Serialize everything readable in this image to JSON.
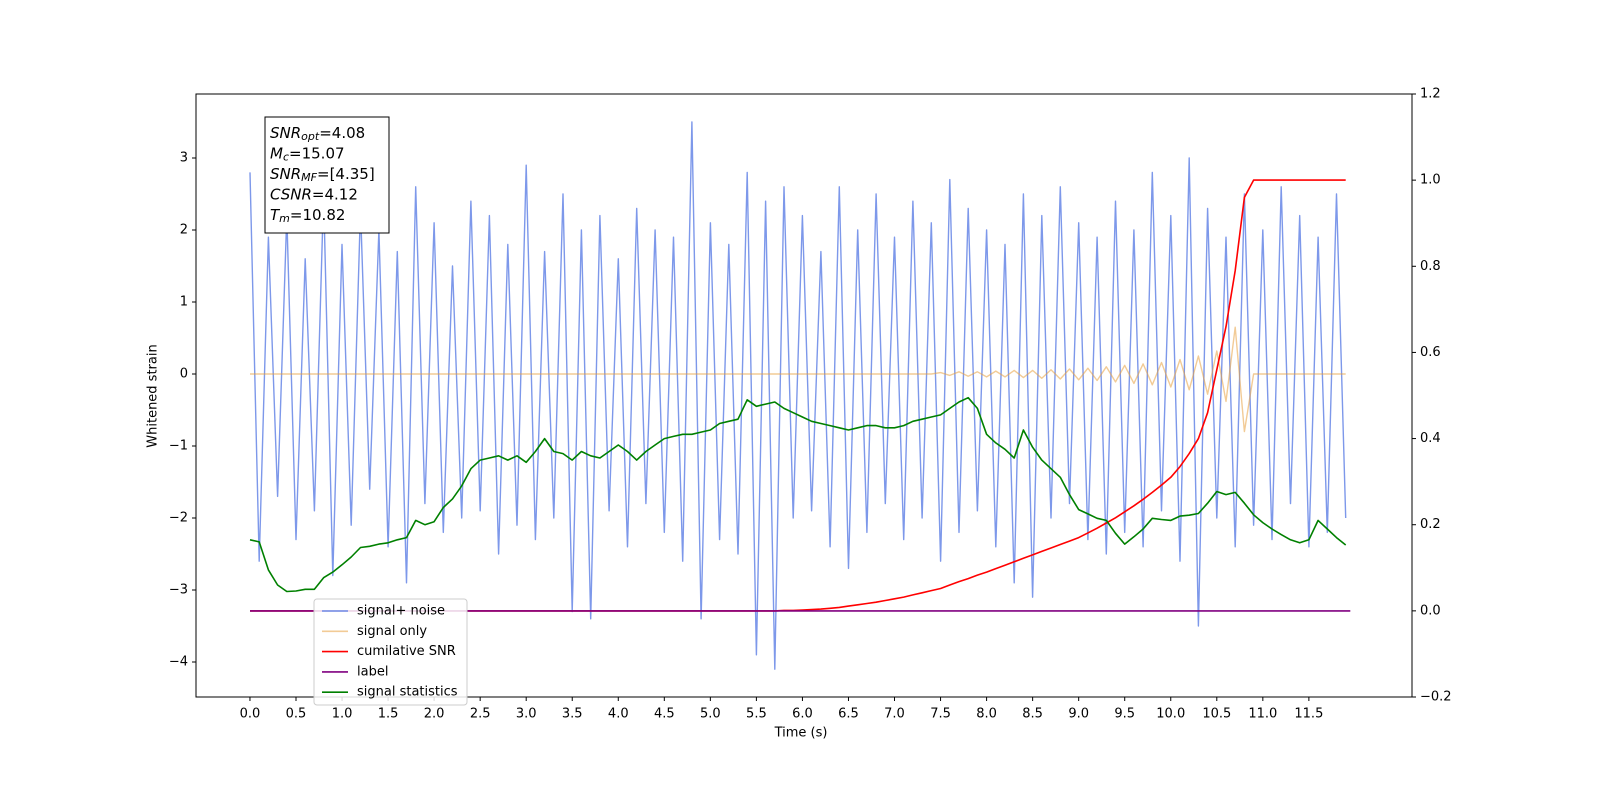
{
  "chart_data": {
    "type": "line",
    "xlabel": "Time (s)",
    "ylabel": "Whitened strain",
    "xlim": [
      -0.586,
      12.62
    ],
    "ylim": [
      -4.486,
      3.889
    ],
    "y2lim": [
      -0.2,
      1.2
    ],
    "xticks": [
      {
        "value": 0,
        "label": "0.0"
      },
      0.5,
      {
        "value": 1,
        "label": "1.0"
      },
      1.5,
      {
        "value": 2,
        "label": "2.0"
      },
      2.5,
      {
        "value": 3,
        "label": "3.0"
      },
      3.5,
      {
        "value": 4,
        "label": "4.0"
      },
      4.5,
      {
        "value": 5,
        "label": "5.0"
      },
      5.5,
      {
        "value": 6,
        "label": "6.0"
      },
      6.5,
      {
        "value": 7,
        "label": "7.0"
      },
      7.5,
      {
        "value": 8,
        "label": "8.0"
      },
      8.5,
      {
        "value": 9,
        "label": "9.0"
      },
      9.5,
      {
        "value": 10,
        "label": "10.0"
      },
      10.5,
      {
        "value": 11,
        "label": "11.0"
      },
      11.5
    ],
    "yticks": [
      {
        "value": -4,
        "label": "−4"
      },
      {
        "value": -3,
        "label": "−3"
      },
      {
        "value": -2,
        "label": "−2"
      },
      {
        "value": -1,
        "label": "−1"
      },
      0,
      1,
      2,
      3
    ],
    "y2ticks": [
      {
        "value": -0.2,
        "label": "−0.2"
      },
      {
        "value": 0,
        "label": "0.0"
      },
      0.2,
      0.4,
      0.6,
      0.8,
      {
        "value": 1,
        "label": "1.0"
      },
      1.2
    ],
    "grid": false,
    "legend": "lower left",
    "annotation": [
      {
        "base": "SNR",
        "sub": "opt",
        "text": "=4.08"
      },
      {
        "base": "M",
        "sub": "c",
        "text": "=15.07"
      },
      {
        "base": "SNR",
        "sub": "MF",
        "text": "=[4.35]"
      },
      {
        "base": "CSNR",
        "sub": "",
        "text": "=4.12"
      },
      {
        "base": "T",
        "sub": "m",
        "text": "=10.82"
      }
    ],
    "x": [
      0,
      0.1,
      0.2,
      0.3,
      0.4,
      0.5,
      0.6,
      0.7,
      0.8,
      0.9,
      1,
      1.1,
      1.2,
      1.3,
      1.4,
      1.5,
      1.6,
      1.7,
      1.8,
      1.9,
      2,
      2.1,
      2.2,
      2.3,
      2.4,
      2.5,
      2.6,
      2.7,
      2.8,
      2.9,
      3,
      3.1,
      3.2,
      3.3,
      3.4,
      3.5,
      3.6,
      3.7,
      3.8,
      3.9,
      4,
      4.1,
      4.2,
      4.3,
      4.4,
      4.5,
      4.6,
      4.7,
      4.8,
      4.9,
      5,
      5.1,
      5.2,
      5.3,
      5.4,
      5.5,
      5.6,
      5.7,
      5.8,
      5.9,
      6,
      6.1,
      6.2,
      6.3,
      6.4,
      6.5,
      6.6,
      6.7,
      6.8,
      6.9,
      7,
      7.1,
      7.2,
      7.3,
      7.4,
      7.5,
      7.6,
      7.7,
      7.8,
      7.9,
      8,
      8.1,
      8.2,
      8.3,
      8.4,
      8.5,
      8.6,
      8.7,
      8.8,
      8.9,
      9,
      9.1,
      9.2,
      9.3,
      9.4,
      9.5,
      9.6,
      9.7,
      9.8,
      9.9,
      10,
      10.1,
      10.2,
      10.3,
      10.4,
      10.5,
      10.6,
      10.7,
      10.8,
      10.9,
      11,
      11.1,
      11.2,
      11.3,
      11.4,
      11.5,
      11.6,
      11.7,
      11.8,
      11.9
    ],
    "series": [
      {
        "name": "signal+ noise",
        "color": "#6f8de8",
        "axis": "y",
        "values": [
          2.8,
          -2.6,
          1.9,
          -1.7,
          2.2,
          -2.3,
          1.6,
          -1.9,
          2.5,
          -2.8,
          1.8,
          -2.1,
          2.3,
          -1.6,
          2.0,
          -2.4,
          1.7,
          -2.9,
          2.6,
          -1.8,
          2.1,
          -2.2,
          1.5,
          -2.0,
          2.4,
          -1.9,
          2.2,
          -2.5,
          1.8,
          -2.1,
          2.9,
          -2.3,
          1.7,
          -2.0,
          2.5,
          -3.3,
          2.0,
          -3.4,
          2.2,
          -1.9,
          1.6,
          -2.4,
          2.3,
          -1.8,
          2.0,
          -2.2,
          1.9,
          -2.6,
          3.5,
          -3.4,
          2.1,
          -2.3,
          1.8,
          -2.5,
          2.8,
          -3.9,
          2.4,
          -4.1,
          2.6,
          -2.0,
          2.2,
          -1.9,
          1.7,
          -2.4,
          2.6,
          -2.7,
          2.0,
          -2.2,
          2.5,
          -1.8,
          1.9,
          -2.3,
          2.4,
          -2.0,
          2.1,
          -2.6,
          2.7,
          -2.2,
          2.3,
          -1.9,
          2.0,
          -2.4,
          1.8,
          -2.9,
          2.5,
          -3.1,
          2.2,
          -2.0,
          2.6,
          -1.8,
          2.1,
          -2.3,
          1.9,
          -2.5,
          2.4,
          -2.2,
          2.0,
          -2.4,
          2.8,
          -1.9,
          2.2,
          -2.6,
          3.0,
          -3.5,
          2.3,
          -2.0,
          1.9,
          -2.4,
          2.5,
          -2.1,
          2.0,
          -2.3,
          2.6,
          -1.8,
          2.2,
          -2.4,
          1.9,
          -2.2,
          2.5,
          -2.0
        ]
      },
      {
        "name": "signal only",
        "color": "#e8a040",
        "axis": "y",
        "values": [
          0,
          0,
          0,
          0,
          0,
          0,
          0,
          0,
          0,
          0,
          0,
          0,
          0,
          0,
          0,
          0,
          0,
          0,
          0,
          0,
          0,
          0,
          0,
          0,
          0,
          0,
          0,
          0,
          0,
          0,
          0,
          0,
          0,
          0,
          0,
          0,
          0,
          0,
          0,
          0,
          0,
          0,
          0,
          0,
          0,
          0,
          0,
          0,
          0,
          0,
          0,
          0,
          0,
          0,
          0,
          0,
          0,
          0,
          0,
          0,
          0,
          0,
          0,
          0,
          0,
          0,
          0,
          0,
          0,
          0,
          0,
          0,
          0,
          0,
          0,
          0.02,
          -0.02,
          0.03,
          -0.03,
          0.03,
          -0.04,
          0.04,
          -0.04,
          0.05,
          -0.05,
          0.05,
          -0.06,
          0.06,
          -0.07,
          0.07,
          -0.08,
          0.08,
          -0.09,
          0.1,
          -0.11,
          0.12,
          -0.13,
          0.14,
          -0.15,
          0.16,
          -0.18,
          0.2,
          -0.22,
          0.25,
          -0.28,
          0.32,
          -0.38,
          0.65,
          -0.8,
          0,
          0,
          0,
          0,
          0,
          0,
          0,
          0,
          0,
          0,
          0
        ]
      },
      {
        "name": "cumilative SNR",
        "color": "#ff0000",
        "axis": "y2",
        "values": [
          0,
          0,
          0,
          0,
          0,
          0,
          0,
          0,
          0,
          0,
          0,
          0,
          0,
          0,
          0,
          0,
          0,
          0,
          0,
          0,
          0,
          0,
          0,
          0,
          0,
          0,
          0,
          0,
          0,
          0,
          0,
          0,
          0,
          0,
          0,
          0,
          0,
          0,
          0,
          0,
          0,
          0,
          0,
          0,
          0,
          0,
          0,
          0,
          0,
          0,
          0,
          0,
          0,
          0,
          0,
          0,
          0,
          0,
          0.001,
          0.001,
          0.002,
          0.003,
          0.004,
          0.006,
          0.008,
          0.011,
          0.014,
          0.017,
          0.02,
          0.024,
          0.028,
          0.032,
          0.037,
          0.042,
          0.047,
          0.052,
          0.06,
          0.068,
          0.075,
          0.083,
          0.09,
          0.098,
          0.106,
          0.114,
          0.122,
          0.13,
          0.138,
          0.146,
          0.154,
          0.162,
          0.17,
          0.181,
          0.192,
          0.204,
          0.216,
          0.23,
          0.244,
          0.259,
          0.275,
          0.292,
          0.31,
          0.335,
          0.365,
          0.4,
          0.46,
          0.56,
          0.66,
          0.79,
          0.96,
          1,
          1,
          1,
          1,
          1,
          1,
          1,
          1,
          1,
          1,
          1
        ]
      },
      {
        "name": "label",
        "color": "#800080",
        "axis": "y2",
        "x": [
          0,
          11.95
        ],
        "values": [
          0,
          0
        ]
      },
      {
        "name": "signal statistics",
        "color": "#008000",
        "axis": "y2",
        "values": [
          0.165,
          0.16,
          0.095,
          0.06,
          0.045,
          0.046,
          0.05,
          0.05,
          0.077,
          0.09,
          0.107,
          0.125,
          0.147,
          0.15,
          0.155,
          0.158,
          0.165,
          0.17,
          0.21,
          0.2,
          0.207,
          0.24,
          0.26,
          0.29,
          0.33,
          0.35,
          0.355,
          0.36,
          0.35,
          0.36,
          0.345,
          0.37,
          0.4,
          0.37,
          0.365,
          0.35,
          0.37,
          0.36,
          0.355,
          0.37,
          0.385,
          0.37,
          0.35,
          0.37,
          0.385,
          0.4,
          0.405,
          0.41,
          0.41,
          0.415,
          0.42,
          0.435,
          0.44,
          0.445,
          0.49,
          0.475,
          0.48,
          0.485,
          0.47,
          0.46,
          0.45,
          0.44,
          0.435,
          0.43,
          0.425,
          0.42,
          0.425,
          0.43,
          0.43,
          0.425,
          0.425,
          0.43,
          0.44,
          0.445,
          0.45,
          0.455,
          0.47,
          0.485,
          0.495,
          0.47,
          0.41,
          0.39,
          0.375,
          0.355,
          0.42,
          0.38,
          0.35,
          0.33,
          0.31,
          0.27,
          0.235,
          0.225,
          0.215,
          0.21,
          0.18,
          0.155,
          0.172,
          0.19,
          0.215,
          0.212,
          0.21,
          0.22,
          0.222,
          0.226,
          0.25,
          0.277,
          0.27,
          0.275,
          0.25,
          0.223,
          0.205,
          0.19,
          0.177,
          0.165,
          0.158,
          0.165,
          0.21,
          0.19,
          0.17,
          0.153
        ]
      }
    ]
  }
}
